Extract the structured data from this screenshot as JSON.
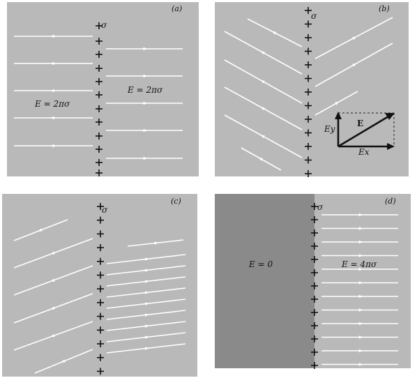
{
  "panels": {
    "a": {
      "letter": "(a)",
      "sigma_label": "σ",
      "left_field_label": "E = 2πσ",
      "right_field_label": "E = 2πσ"
    },
    "b": {
      "letter": "(b)",
      "sigma_label": "σ",
      "inset": {
        "vector_label": "E",
        "ex_label": "Ex",
        "ey_label": "Ey"
      }
    },
    "c": {
      "letter": "(c)",
      "sigma_label": "σ"
    },
    "d": {
      "letter": "(d)",
      "sigma_label": "σ",
      "left_field_label": "E = 0",
      "right_field_label": "E = 4πσ"
    }
  },
  "colors": {
    "panel_background": "#b9b9b9",
    "conductor_background": "#8a8a8a",
    "field_line": "#ffffff",
    "charge": "#111111"
  }
}
